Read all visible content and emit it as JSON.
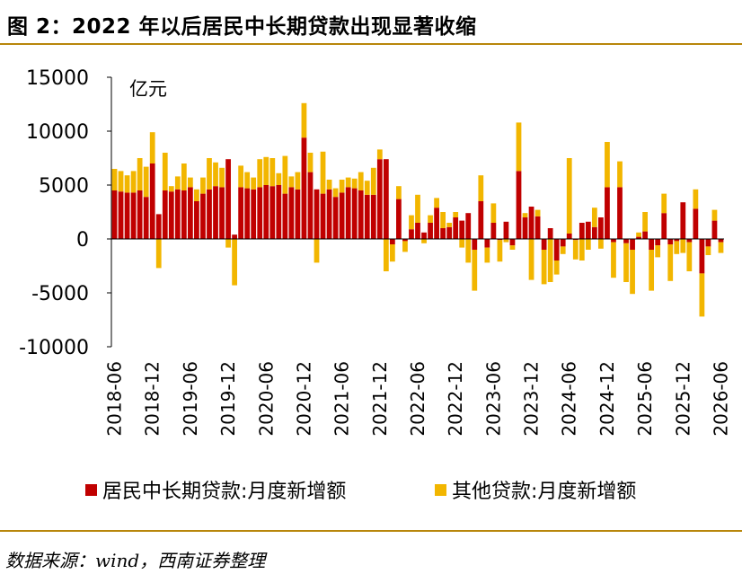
{
  "title": "图 2：2022 年以后居民中长期贷款出现显著收缩",
  "source": "数据来源：wind，西南证券整理",
  "colors": {
    "red": "#C00000",
    "gold": "#F2B600",
    "rule": "#B8860B"
  },
  "chart_data": {
    "type": "bar",
    "stacked": true,
    "unit_label": "亿元",
    "ylim": [
      -10000,
      15000
    ],
    "yticks": [
      -10000,
      -5000,
      0,
      5000,
      10000,
      15000
    ],
    "x_tick_labels": [
      "2018-06",
      "2018-12",
      "2019-06",
      "2019-12",
      "2020-06",
      "2020-12",
      "2021-06",
      "2021-12",
      "2022-06",
      "2022-12",
      "2023-06",
      "2023-12",
      "2024-06",
      "2024-12",
      "2025-06",
      "2025-12",
      "2026-06"
    ],
    "months": [
      "2018-06",
      "2018-07",
      "2018-08",
      "2018-09",
      "2018-10",
      "2018-11",
      "2018-12",
      "2019-01",
      "2019-02",
      "2019-03",
      "2019-04",
      "2019-05",
      "2019-06",
      "2019-07",
      "2019-08",
      "2019-09",
      "2019-10",
      "2019-11",
      "2019-12",
      "2020-01",
      "2020-02",
      "2020-03",
      "2020-04",
      "2020-05",
      "2020-06",
      "2020-07",
      "2020-08",
      "2020-09",
      "2020-10",
      "2020-11",
      "2020-12",
      "2021-01",
      "2021-02",
      "2021-03",
      "2021-04",
      "2021-05",
      "2021-06",
      "2021-07",
      "2021-08",
      "2021-09",
      "2021-10",
      "2021-11",
      "2021-12",
      "2022-01",
      "2022-02",
      "2022-03",
      "2022-04",
      "2022-05",
      "2022-06",
      "2022-07",
      "2022-08",
      "2022-09",
      "2022-10",
      "2022-11",
      "2022-12",
      "2023-01",
      "2023-02",
      "2023-03",
      "2023-04",
      "2023-05",
      "2023-06",
      "2023-07",
      "2023-08",
      "2023-09",
      "2023-10",
      "2023-11",
      "2023-12",
      "2024-01",
      "2024-02",
      "2024-03",
      "2024-04",
      "2024-05",
      "2024-06",
      "2024-07",
      "2024-08",
      "2024-09",
      "2024-10",
      "2024-11",
      "2024-12",
      "2025-01",
      "2025-02",
      "2025-03",
      "2025-04",
      "2025-05",
      "2025-06",
      "2025-07",
      "2025-08",
      "2025-09",
      "2025-10",
      "2025-11",
      "2025-12",
      "2026-01",
      "2026-02",
      "2026-03",
      "2026-04",
      "2026-05",
      "2026-06"
    ],
    "series": [
      {
        "name": "居民中长期贷款:月度新增额",
        "values": [
          4500,
          4400,
          4300,
          4300,
          4500,
          3900,
          7000,
          2300,
          4500,
          4400,
          4600,
          4500,
          4800,
          3500,
          4200,
          4600,
          4900,
          4800,
          7400,
          400,
          4800,
          4700,
          4600,
          4800,
          5000,
          4900,
          5000,
          4200,
          4800,
          4600,
          9400,
          6200,
          4600,
          4200,
          4600,
          3900,
          4300,
          4800,
          4700,
          4500,
          4100,
          4100,
          7400,
          7400,
          -500,
          3700,
          -200,
          900,
          1500,
          600,
          1500,
          2900,
          1000,
          1100,
          2000,
          1700,
          2400,
          -1000,
          3500,
          -800,
          1500,
          -100,
          1600,
          -600,
          6300,
          2000,
          3000,
          2100,
          -1000,
          1000,
          -2000,
          -700,
          500,
          -100,
          1500,
          1600,
          1100,
          2000,
          4800,
          -300,
          4800,
          -400,
          -1000,
          200,
          700,
          -1000,
          -600,
          2400,
          -500,
          -200,
          3400,
          -300,
          2800,
          -3200,
          -700,
          1700,
          -300
        ],
        "color": "#C00000"
      },
      {
        "name": "其他贷款:月度新增额",
        "values": [
          2000,
          1900,
          1600,
          2000,
          3000,
          2800,
          2900,
          -2700,
          3500,
          500,
          1200,
          2500,
          900,
          1100,
          1500,
          2900,
          2200,
          1800,
          -800,
          -4300,
          2000,
          1500,
          1100,
          2600,
          2600,
          2600,
          1100,
          3500,
          1000,
          1600,
          3200,
          1800,
          -2200,
          3900,
          900,
          800,
          1200,
          900,
          900,
          1700,
          1300,
          2500,
          900,
          -3000,
          -1600,
          1200,
          -1000,
          1300,
          2600,
          -400,
          700,
          900,
          1500,
          400,
          500,
          -800,
          -2200,
          -3800,
          2400,
          -1400,
          1800,
          -2000,
          -300,
          -400,
          4500,
          400,
          -3800,
          600,
          -3200,
          -4000,
          -1300,
          -700,
          7000,
          -1800,
          -2000,
          -1000,
          1800,
          -900,
          4200,
          -3300,
          2400,
          -3600,
          -4100,
          400,
          1800,
          -3800,
          -1100,
          1800,
          -3400,
          -1200,
          -1300,
          -2700,
          1800,
          -4000,
          -800,
          1000,
          -1000
        ],
        "color": "#F2B600"
      }
    ],
    "legend_position": "bottom",
    "grid": false
  }
}
